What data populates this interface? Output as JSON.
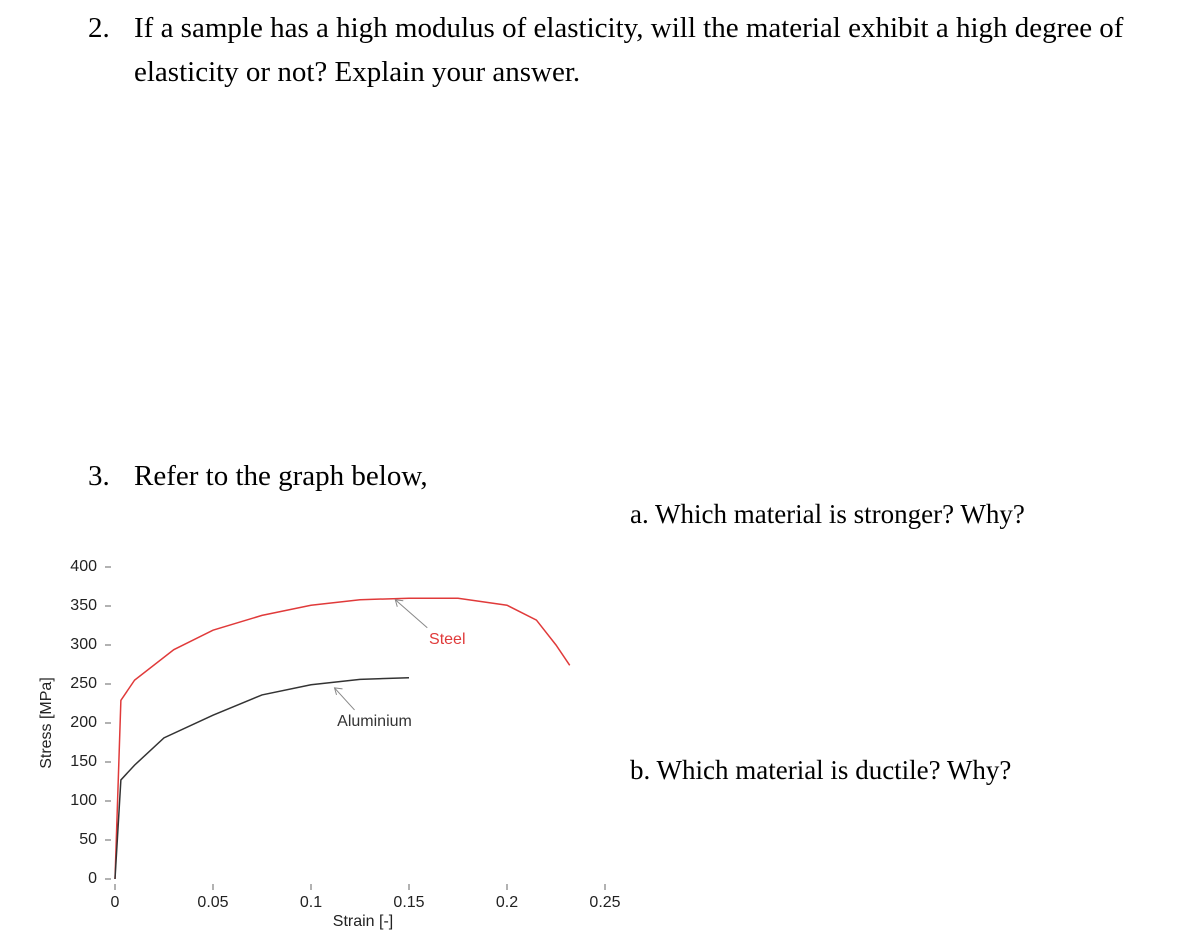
{
  "questions": [
    {
      "number": "2.",
      "lines": [
        "If a sample has a high modulus of elasticity, will the material exhibit a high degree of",
        "elasticity or not? Explain your answer."
      ]
    },
    {
      "number": "3.",
      "lines": [
        "Refer to the graph below,"
      ]
    }
  ],
  "sub_questions": [
    "a. Which material is stronger? Why?",
    "b. Which material is ductile? Why?"
  ],
  "chart_data": {
    "type": "line",
    "xlabel": "Strain [-]",
    "ylabel": "Stress [MPa]",
    "xlim": [
      0,
      0.25
    ],
    "ylim": [
      0,
      400
    ],
    "xticks": [
      0,
      0.05,
      0.1,
      0.15,
      0.2,
      0.25
    ],
    "yticks": [
      0,
      50,
      100,
      150,
      200,
      250,
      300,
      350,
      400
    ],
    "series": [
      {
        "name": "Steel",
        "color": "#e03a3a",
        "x": [
          0,
          0.003,
          0.01,
          0.03,
          0.05,
          0.075,
          0.1,
          0.125,
          0.15,
          0.175,
          0.2,
          0.215,
          0.225,
          0.232
        ],
        "values": [
          0,
          229,
          255,
          294,
          319,
          338,
          351,
          358,
          360,
          360,
          351,
          332,
          300,
          274
        ],
        "label_point": {
          "x": 0.143,
          "y": 358
        }
      },
      {
        "name": "Aluminium",
        "color": "#333333",
        "x": [
          0,
          0.003,
          0.01,
          0.025,
          0.05,
          0.075,
          0.1,
          0.125,
          0.15
        ],
        "values": [
          0,
          127,
          146,
          181,
          210,
          236,
          249,
          256,
          258
        ],
        "label_point": {
          "x": 0.112,
          "y": 245
        }
      }
    ]
  }
}
